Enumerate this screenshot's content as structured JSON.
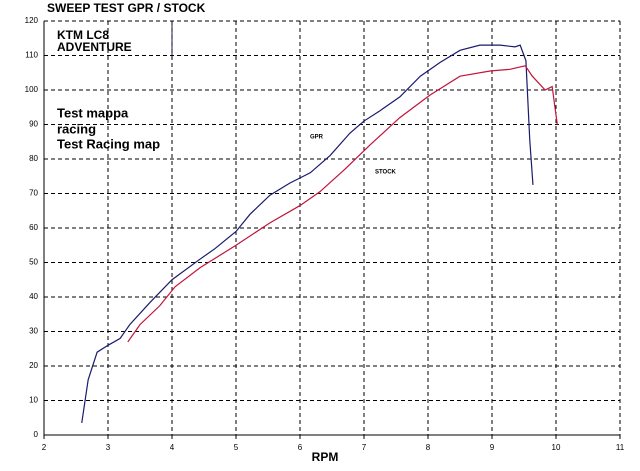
{
  "chart_data": {
    "type": "line",
    "title": "SWEEP TEST  GPR / STOCK",
    "x_label": "RPM",
    "annotations": [
      "KTM LC8",
      "ADVENTURE",
      "Test mappa",
      "racing",
      "Test Racing map"
    ],
    "xlim": [
      2,
      11
    ],
    "xticks": [
      2,
      3,
      4,
      5,
      6,
      7,
      8,
      9,
      10,
      11
    ],
    "ylim": [
      0,
      120
    ],
    "yticks": [
      0,
      10,
      20,
      30,
      40,
      50,
      60,
      70,
      80,
      90,
      100,
      110,
      120
    ],
    "grid": true,
    "series": [
      {
        "name": "GPR",
        "color": "#1a1a6e",
        "x": [
          2.59,
          2.69,
          2.83,
          3.0,
          3.19,
          3.34,
          3.66,
          4.0,
          4.44,
          4.67,
          5.0,
          5.22,
          5.53,
          5.84,
          6.16,
          6.47,
          6.78,
          7.0,
          7.25,
          7.56,
          7.88,
          8.19,
          8.5,
          8.81,
          9.13,
          9.36,
          9.44,
          9.53,
          9.59,
          9.64
        ],
        "values": [
          3.5,
          16,
          24,
          26,
          28,
          32,
          38.5,
          45,
          51,
          54,
          59,
          64,
          69.5,
          73,
          76,
          81,
          87.5,
          91,
          94,
          98,
          104,
          108,
          111.5,
          113,
          113,
          112.5,
          113,
          108.5,
          85.5,
          72.5
        ]
      },
      {
        "name": "STOCK",
        "color": "#c0143c",
        "x": [
          3.31,
          3.5,
          3.81,
          4.05,
          4.44,
          5.0,
          5.53,
          6.0,
          6.31,
          6.7,
          7.09,
          7.56,
          8.03,
          8.5,
          8.97,
          9.28,
          9.52,
          9.63,
          9.83,
          9.94,
          10.02
        ],
        "values": [
          27,
          32,
          37.5,
          43,
          48.5,
          55,
          61.5,
          66.5,
          70.5,
          77,
          84,
          92,
          98.5,
          104,
          105.5,
          106,
          107,
          104,
          100,
          101,
          90
        ]
      }
    ]
  }
}
